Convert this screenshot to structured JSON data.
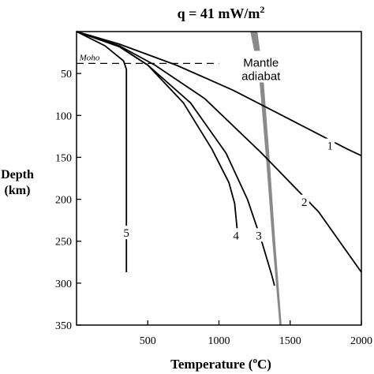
{
  "chart_data": {
    "type": "line",
    "title": "q = 41 mW/m",
    "title_superscript": "2",
    "xlabel": "Temperature (",
    "xlabel_superscript": "o",
    "xlabel_suffix": "C)",
    "ylabel_line1": "Depth",
    "ylabel_line2": "(km)",
    "xlim": [
      0,
      2000
    ],
    "ylim": [
      0,
      350
    ],
    "y_reversed": true,
    "x_ticks": [
      500,
      1000,
      1500,
      2000
    ],
    "y_ticks": [
      50,
      100,
      150,
      200,
      250,
      300,
      350
    ],
    "grid": false,
    "moho": {
      "label": "Moho",
      "depth": 38,
      "x_range": [
        0,
        1000
      ]
    },
    "adiabat": {
      "label_line1": "Mantle",
      "label_line2": "adiabat",
      "left_edge": [
        [
          1220,
          0
        ],
        [
          1280,
          50
        ],
        [
          1330,
          150
        ],
        [
          1375,
          250
        ],
        [
          1425,
          350
        ]
      ],
      "right_edge": [
        [
          1270,
          0
        ],
        [
          1310,
          50
        ],
        [
          1355,
          150
        ],
        [
          1395,
          250
        ],
        [
          1440,
          350
        ]
      ]
    },
    "series": [
      {
        "name": "1",
        "points": [
          [
            0,
            0
          ],
          [
            300,
            15
          ],
          [
            700,
            40
          ],
          [
            1100,
            70
          ],
          [
            1500,
            105
          ],
          [
            1900,
            140
          ],
          [
            2000,
            148
          ]
        ]
      },
      {
        "name": "2",
        "points": [
          [
            0,
            0
          ],
          [
            300,
            17
          ],
          [
            550,
            40
          ],
          [
            900,
            80
          ],
          [
            1300,
            145
          ],
          [
            1700,
            215
          ],
          [
            2000,
            287
          ]
        ]
      },
      {
        "name": "3",
        "points": [
          [
            0,
            0
          ],
          [
            300,
            18
          ],
          [
            500,
            40
          ],
          [
            800,
            85
          ],
          [
            1050,
            145
          ],
          [
            1200,
            200
          ],
          [
            1300,
            250
          ],
          [
            1370,
            290
          ],
          [
            1390,
            303
          ]
        ]
      },
      {
        "name": "4",
        "points": [
          [
            0,
            0
          ],
          [
            300,
            18
          ],
          [
            500,
            40
          ],
          [
            750,
            85
          ],
          [
            950,
            140
          ],
          [
            1070,
            180
          ],
          [
            1110,
            205
          ],
          [
            1130,
            240
          ]
        ]
      },
      {
        "name": "5",
        "points": [
          [
            0,
            0
          ],
          [
            200,
            17
          ],
          [
            330,
            35
          ],
          [
            350,
            45
          ],
          [
            350,
            287
          ]
        ]
      }
    ],
    "series_labels": [
      {
        "text": "1",
        "x": 1780,
        "y": 136
      },
      {
        "text": "2",
        "x": 1600,
        "y": 203
      },
      {
        "text": "3",
        "x": 1280,
        "y": 243
      },
      {
        "text": "4",
        "x": 1120,
        "y": 243
      },
      {
        "text": "5",
        "x": 350,
        "y": 240
      }
    ]
  }
}
